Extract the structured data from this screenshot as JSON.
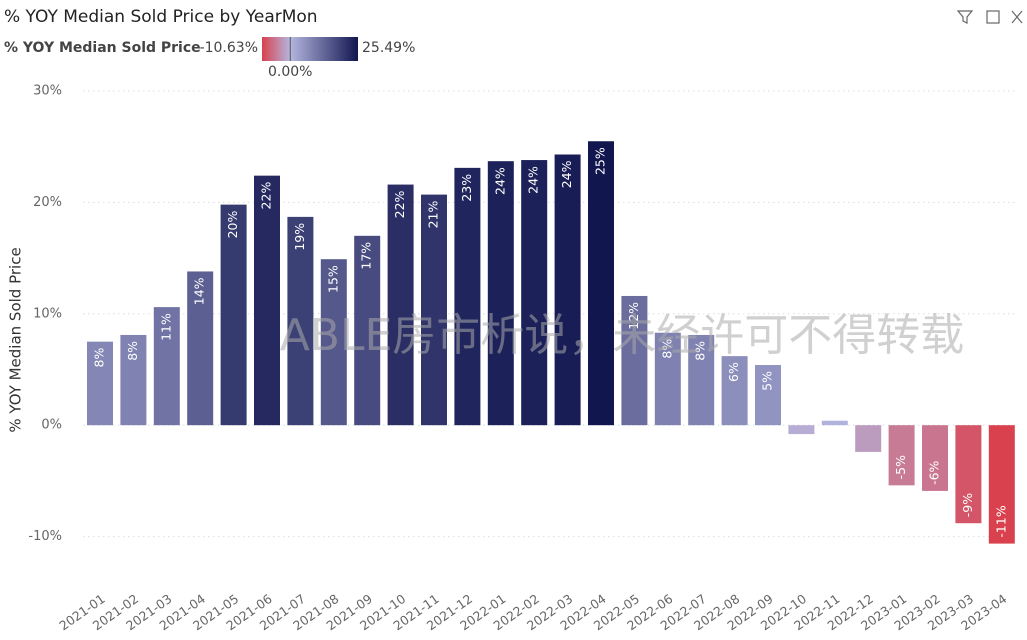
{
  "chart_data": {
    "type": "bar",
    "title": "% YOY Median Sold Price by YearMon",
    "y_label": "% YOY Median Sold Price",
    "annotation": "ABLE房市析说，未经许可不得转载",
    "categories": [
      "2021-01",
      "2021-02",
      "2021-03",
      "2021-04",
      "2021-05",
      "2021-06",
      "2021-07",
      "2021-08",
      "2021-09",
      "2021-10",
      "2021-11",
      "2021-12",
      "2022-01",
      "2022-02",
      "2022-03",
      "2022-04",
      "2022-05",
      "2022-06",
      "2022-07",
      "2022-08",
      "2022-09",
      "2022-10",
      "2022-11",
      "2022-12",
      "2023-01",
      "2023-02",
      "2023-03",
      "2023-04"
    ],
    "values": [
      7.5,
      8.1,
      10.6,
      13.8,
      19.8,
      22.4,
      18.7,
      14.9,
      17.0,
      21.6,
      20.7,
      23.1,
      23.7,
      23.8,
      24.3,
      25.49,
      11.6,
      8.3,
      8.1,
      6.2,
      5.4,
      -0.8,
      0.4,
      -2.4,
      -5.4,
      -5.9,
      -8.8,
      -10.63
    ],
    "value_labels": [
      "8%",
      "8%",
      "11%",
      "14%",
      "20%",
      "22%",
      "19%",
      "15%",
      "17%",
      "22%",
      "21%",
      "23%",
      "24%",
      "24%",
      "24%",
      "25%",
      "12%",
      "8%",
      "8%",
      "6%",
      "5%",
      null,
      null,
      null,
      "-5%",
      "-6%",
      "-9%",
      "-11%"
    ],
    "color_scale": {
      "title": "% YOY Median Sold Price",
      "min": {
        "value": -10.63,
        "label": "-10.63%",
        "color": "#d9414e"
      },
      "center": {
        "value": 0,
        "label": "0.00%",
        "color": "#b4b6df"
      },
      "max": {
        "value": 25.49,
        "label": "25.49%",
        "color": "#11164f"
      }
    },
    "ylim": [
      -13,
      30
    ],
    "yticks": [
      {
        "value": -10,
        "label": "-10%"
      },
      {
        "value": 0,
        "label": "0%"
      },
      {
        "value": 10,
        "label": "10%"
      },
      {
        "value": 20,
        "label": "20%"
      },
      {
        "value": 30,
        "label": "30%"
      }
    ],
    "grid": true
  }
}
